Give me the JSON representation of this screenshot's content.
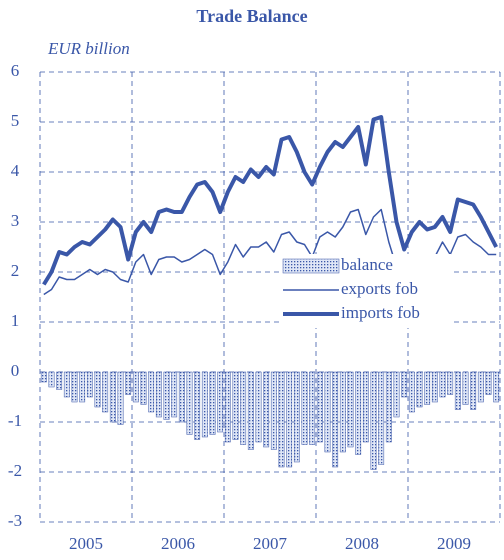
{
  "chart_data": {
    "type": "bar-line",
    "title": "Trade Balance",
    "y_label": "EUR billion",
    "year_labels": [
      2005,
      2006,
      2007,
      2008,
      2009
    ],
    "ylim": [
      -3,
      6
    ],
    "yticks": [
      -3,
      -2,
      -1,
      0,
      1,
      2,
      3,
      4,
      5,
      6
    ],
    "grid": true,
    "legend": "center-right",
    "series": [
      {
        "name": "balance",
        "type": "bar",
        "color": "#3a57a8",
        "values": [
          -0.2,
          -0.3,
          -0.35,
          -0.5,
          -0.6,
          -0.6,
          -0.5,
          -0.7,
          -0.8,
          -1.0,
          -1.05,
          -0.45,
          -0.6,
          -0.65,
          -0.8,
          -0.9,
          -0.95,
          -0.9,
          -1.0,
          -1.25,
          -1.35,
          -1.3,
          -1.25,
          -1.2,
          -1.4,
          -1.35,
          -1.45,
          -1.55,
          -1.4,
          -1.5,
          -1.55,
          -1.9,
          -1.9,
          -1.8,
          -1.45,
          -1.45,
          -1.4,
          -1.6,
          -1.9,
          -1.6,
          -1.5,
          -1.65,
          -1.4,
          -1.95,
          -1.85,
          -1.4,
          -0.9,
          -0.5,
          -0.8,
          -0.7,
          -0.65,
          -0.6,
          -0.5,
          -0.45,
          -0.75,
          -0.65,
          -0.75,
          -0.6,
          -0.45,
          -0.6
        ]
      },
      {
        "name": "exports fob",
        "type": "line",
        "width": 1.5,
        "color": "#3a57a8",
        "values": [
          1.55,
          1.65,
          1.9,
          1.85,
          1.85,
          1.95,
          2.05,
          1.95,
          2.05,
          2.0,
          1.85,
          1.8,
          2.2,
          2.35,
          1.95,
          2.25,
          2.3,
          2.3,
          2.2,
          2.25,
          2.35,
          2.45,
          2.35,
          1.95,
          2.2,
          2.55,
          2.3,
          2.5,
          2.5,
          2.6,
          2.4,
          2.75,
          2.8,
          2.6,
          2.55,
          2.3,
          2.7,
          2.8,
          2.7,
          2.9,
          3.2,
          3.25,
          2.75,
          3.1,
          3.25,
          2.6,
          2.1,
          1.95,
          2.0,
          2.3,
          2.2,
          2.3,
          2.6,
          2.35,
          2.7,
          2.75,
          2.6,
          2.5,
          2.35,
          2.35
        ]
      },
      {
        "name": "imports fob",
        "type": "line",
        "width": 4,
        "color": "#3a57a8",
        "values": [
          1.75,
          2.0,
          2.4,
          2.35,
          2.5,
          2.6,
          2.55,
          2.7,
          2.85,
          3.05,
          2.9,
          2.25,
          2.8,
          3.0,
          2.8,
          3.2,
          3.25,
          3.2,
          3.2,
          3.5,
          3.75,
          3.8,
          3.6,
          3.2,
          3.6,
          3.9,
          3.8,
          4.05,
          3.9,
          4.1,
          3.95,
          4.65,
          4.7,
          4.4,
          4.0,
          3.75,
          4.1,
          4.4,
          4.6,
          4.5,
          4.7,
          4.9,
          4.15,
          5.05,
          5.1,
          4.0,
          3.0,
          2.45,
          2.8,
          3.0,
          2.85,
          2.9,
          3.1,
          2.8,
          3.45,
          3.4,
          3.35,
          3.1,
          2.8,
          2.5
        ]
      }
    ]
  }
}
